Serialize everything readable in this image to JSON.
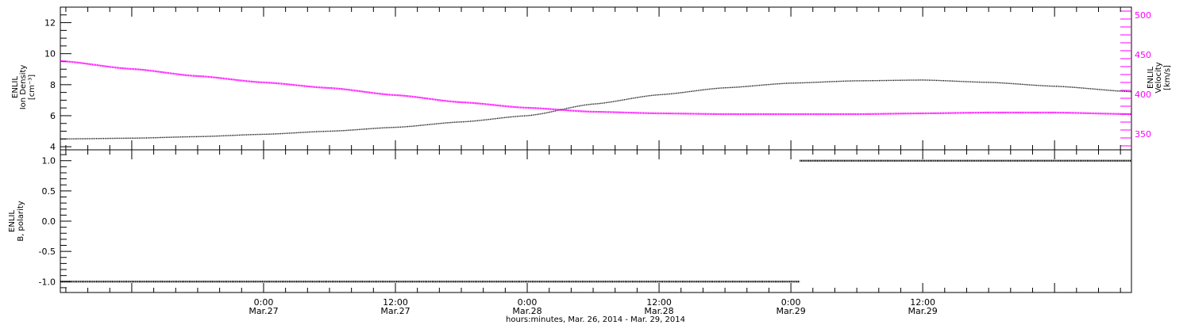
{
  "chart_data": [
    {
      "type": "line",
      "panel": "top",
      "left_axis": {
        "title_line1": "ENLIL",
        "title_line2": "Ion Density",
        "title_line3": "[cm⁻³]",
        "ylim": [
          3.8,
          13.0
        ],
        "ticks": [
          4,
          6,
          8,
          10,
          12
        ],
        "tick_labels": [
          "4",
          "6",
          "8",
          "10",
          "12"
        ]
      },
      "right_axis": {
        "title_line1": "ENLIL",
        "title_line2": "Velocity",
        "title_line3": "[km/s]",
        "ylim": [
          330,
          510
        ],
        "ticks": [
          350,
          400,
          450,
          500
        ],
        "tick_labels": [
          "350",
          "400",
          "450",
          "500"
        ],
        "color": "#ff00ff"
      },
      "xlim_hours": [
        -18.5,
        79.0
      ],
      "series": [
        {
          "axis": "left",
          "color": "#000000",
          "x_hours": [
            -18.5,
            -12,
            -6,
            0,
            6,
            12,
            18,
            24,
            30,
            36,
            42,
            48,
            54,
            60,
            66,
            72,
            79
          ],
          "values": [
            4.5,
            4.55,
            4.65,
            4.8,
            5.0,
            5.25,
            5.6,
            6.0,
            6.75,
            7.35,
            7.8,
            8.1,
            8.25,
            8.3,
            8.15,
            7.9,
            7.55
          ]
        },
        {
          "axis": "right",
          "color": "#ff00ff",
          "x_hours": [
            -18.5,
            -12,
            -6,
            0,
            6,
            12,
            18,
            24,
            30,
            36,
            42,
            48,
            54,
            60,
            66,
            72,
            79
          ],
          "values": [
            442,
            432,
            423,
            415,
            408,
            399,
            390,
            383,
            378,
            376,
            375,
            375,
            375,
            376,
            377,
            377,
            375
          ]
        }
      ]
    },
    {
      "type": "line",
      "panel": "bottom",
      "left_axis": {
        "title_line1": "ENLIL",
        "title_line2": "B, polarity",
        "ylim": [
          -1.18,
          1.18
        ],
        "ticks": [
          -1.0,
          -0.5,
          0.0,
          0.5,
          1.0
        ],
        "tick_labels": [
          "-1.0",
          "-0.5",
          "0.0",
          "0.5",
          "1.0"
        ]
      },
      "xlim_hours": [
        -18.5,
        79.0
      ],
      "series": [
        {
          "color": "#000000",
          "segments": [
            {
              "x_hours": [
                -18.5,
                48.8
              ],
              "values": [
                -1.0,
                -1.0
              ]
            },
            {
              "x_hours": [
                48.8,
                79.0
              ],
              "values": [
                1.0,
                1.0
              ]
            }
          ]
        }
      ]
    }
  ],
  "x_axis": {
    "major_ticks_hours": [
      0,
      12,
      24,
      36,
      48,
      60
    ],
    "tick_labels_line1": [
      "0:00",
      "12:00",
      "0:00",
      "12:00",
      "0:00",
      "12:00"
    ],
    "tick_labels_line2": [
      "Mar.27",
      "Mar.27",
      "Mar.28",
      "Mar.28",
      "Mar.29",
      "Mar.29"
    ],
    "minor_step_hours": 2,
    "title": "hours:minutes, Mar. 26, 2014 - Mar. 29, 2014"
  }
}
